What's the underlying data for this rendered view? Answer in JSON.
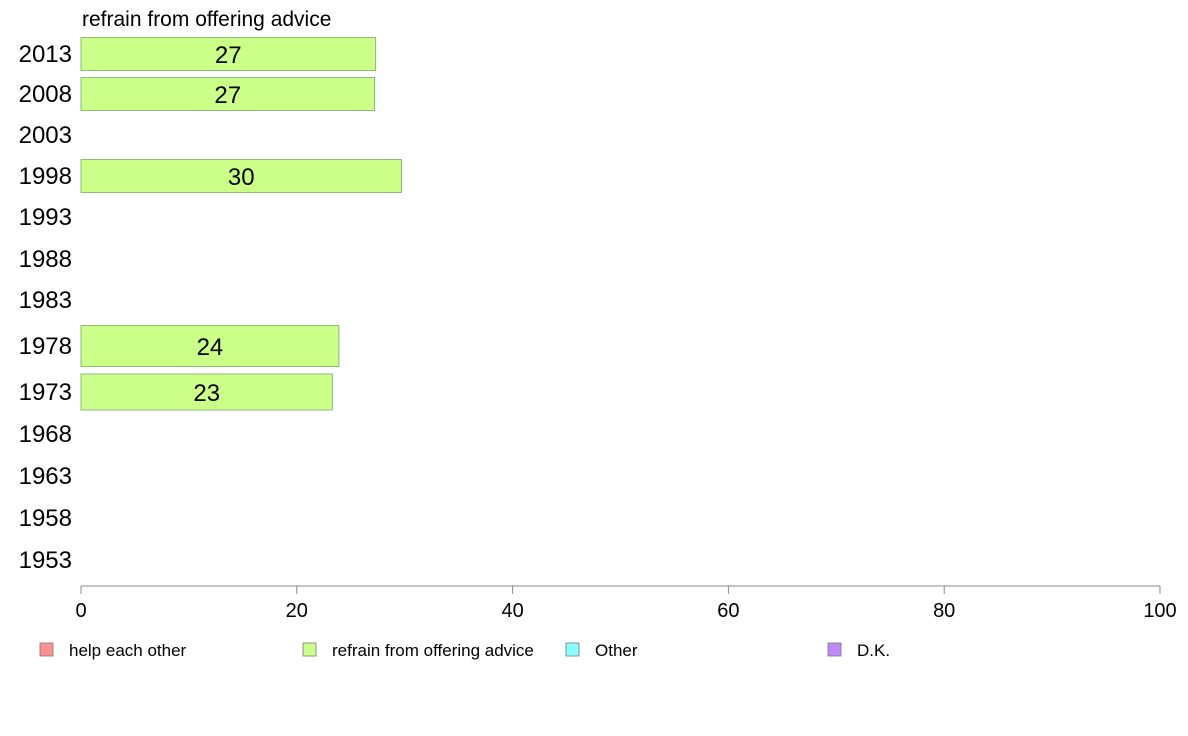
{
  "chart_data": {
    "type": "bar",
    "orientation": "horizontal",
    "panel_title": "refrain from offering advice",
    "categories": [
      "2013",
      "2008",
      "2003",
      "1998",
      "1993",
      "1988",
      "1983",
      "1978",
      "1973",
      "1968",
      "1963",
      "1958",
      "1953"
    ],
    "series": [
      {
        "name": "refrain from offering advice",
        "color": "#ccff88",
        "values": [
          27.3,
          27.2,
          null,
          29.7,
          null,
          null,
          null,
          23.9,
          23.3,
          null,
          null,
          null,
          null
        ],
        "labels": [
          "27",
          "27",
          "",
          "30",
          "",
          "",
          "",
          "24",
          "23",
          "",
          "",
          "",
          ""
        ]
      }
    ],
    "xlim": [
      0,
      100
    ],
    "xticks": [
      0,
      20,
      40,
      60,
      80,
      100
    ],
    "legend": {
      "placement": "bottom",
      "items": [
        {
          "label": "help each other",
          "color": "#ff8f8f"
        },
        {
          "label": "refrain from offering advice",
          "color": "#ccff88"
        },
        {
          "label": "Other",
          "color": "#88ffff"
        },
        {
          "label": "D.K.",
          "color": "#c088ff"
        }
      ]
    },
    "grid": false
  }
}
